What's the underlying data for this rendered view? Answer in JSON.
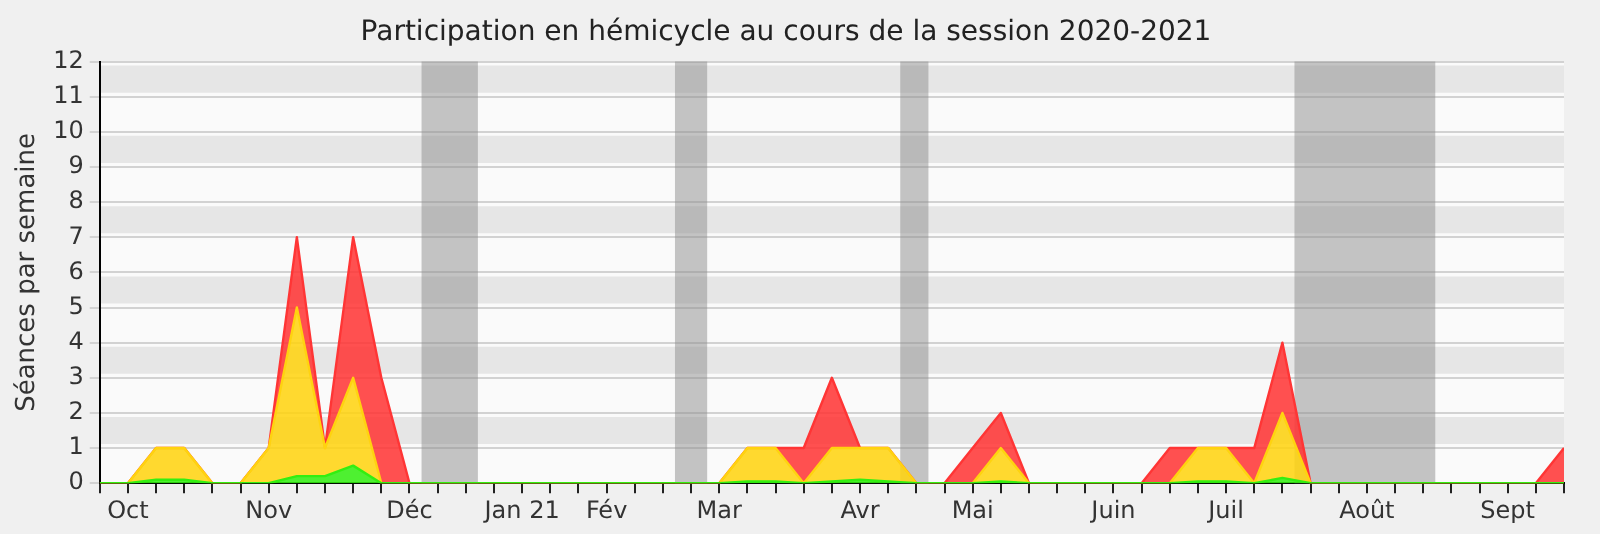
{
  "chart_data": {
    "type": "area",
    "title": "Participation en hémicycle au cours de la session 2020-2021",
    "ylabel": "Séances par semaine",
    "stacked": true,
    "legend": false,
    "grid": "y",
    "x": [
      "2020-09-28",
      "2020-10-05",
      "2020-10-12",
      "2020-10-19",
      "2020-10-26",
      "2020-11-02",
      "2020-11-09",
      "2020-11-16",
      "2020-11-23",
      "2020-11-30",
      "2020-12-07",
      "2020-12-14",
      "2020-12-21",
      "2020-12-28",
      "2021-01-04",
      "2021-01-11",
      "2021-01-18",
      "2021-01-25",
      "2021-02-01",
      "2021-02-08",
      "2021-02-15",
      "2021-02-22",
      "2021-03-01",
      "2021-03-08",
      "2021-03-15",
      "2021-03-22",
      "2021-03-29",
      "2021-04-05",
      "2021-04-12",
      "2021-04-19",
      "2021-04-26",
      "2021-05-03",
      "2021-05-10",
      "2021-05-17",
      "2021-05-24",
      "2021-05-31",
      "2021-06-07",
      "2021-06-14",
      "2021-06-21",
      "2021-06-28",
      "2021-07-05",
      "2021-07-12",
      "2021-07-19",
      "2021-07-26",
      "2021-08-02",
      "2021-08-09",
      "2021-08-16",
      "2021-08-23",
      "2021-08-30",
      "2021-09-06",
      "2021-09-13",
      "2021-09-20",
      "2021-09-27"
    ],
    "series": [
      {
        "color": "#33ee11",
        "values": [
          0,
          0,
          0.1,
          0.1,
          0,
          0,
          0,
          0.2,
          0.2,
          0.5,
          0,
          0,
          0,
          0,
          0,
          0,
          0,
          0,
          0,
          0,
          0,
          0,
          0,
          0.05,
          0.05,
          0,
          0.05,
          0.1,
          0.05,
          0,
          0,
          0,
          0.05,
          0,
          0,
          0,
          0,
          0,
          0,
          0.05,
          0.05,
          0,
          0.15,
          0,
          0,
          0,
          0,
          0,
          0,
          0,
          0,
          0,
          0
        ]
      },
      {
        "color": "#ffd30f",
        "values": [
          0,
          0,
          0.9,
          0.9,
          0,
          0,
          1,
          4.8,
          0.8,
          2.5,
          0,
          0,
          0,
          0,
          0,
          0,
          0,
          0,
          0,
          0,
          0,
          0,
          0,
          0.95,
          0.95,
          0,
          0.95,
          0.9,
          0.95,
          0,
          0,
          0,
          0.95,
          0,
          0,
          0,
          0,
          0,
          0,
          0.95,
          0.95,
          0,
          1.85,
          0,
          0,
          0,
          0,
          0,
          0,
          0,
          0,
          0,
          0
        ]
      },
      {
        "color": "#ff3535",
        "values": [
          0,
          0,
          0,
          0,
          0,
          0,
          0,
          2,
          0,
          4,
          3,
          0,
          0,
          0,
          0,
          0,
          0,
          0,
          0,
          0,
          0,
          0,
          0,
          0,
          0,
          1,
          2,
          0,
          0,
          0,
          0,
          1,
          1,
          0,
          0,
          0,
          0,
          0,
          1,
          0,
          0,
          1,
          2,
          0,
          0,
          0,
          0,
          0,
          0,
          0,
          0,
          0,
          1
        ]
      }
    ],
    "xlim": [
      "2020-09-28",
      "2021-09-27"
    ],
    "xticks": [
      {
        "value": "2020-09-28",
        "label": null
      },
      {
        "value": "2020-10-05",
        "label": "Oct"
      },
      {
        "value": "2020-10-12",
        "label": null
      },
      {
        "value": "2020-10-19",
        "label": null
      },
      {
        "value": "2020-10-26",
        "label": null
      },
      {
        "value": "2020-11-02",
        "label": null
      },
      {
        "value": "2020-11-09",
        "label": "Nov"
      },
      {
        "value": "2020-11-16",
        "label": null
      },
      {
        "value": "2020-11-23",
        "label": null
      },
      {
        "value": "2020-11-30",
        "label": null
      },
      {
        "value": "2020-12-07",
        "label": null
      },
      {
        "value": "2020-12-14",
        "label": "Déc"
      },
      {
        "value": "2020-12-21",
        "label": null
      },
      {
        "value": "2020-12-28",
        "label": null
      },
      {
        "value": "2021-01-04",
        "label": null
      },
      {
        "value": "2021-01-11",
        "label": "Jan 21"
      },
      {
        "value": "2021-01-18",
        "label": null
      },
      {
        "value": "2021-01-25",
        "label": null
      },
      {
        "value": "2021-02-01",
        "label": "Fév"
      },
      {
        "value": "2021-02-08",
        "label": null
      },
      {
        "value": "2021-02-15",
        "label": null
      },
      {
        "value": "2021-02-22",
        "label": null
      },
      {
        "value": "2021-03-01",
        "label": "Mar"
      },
      {
        "value": "2021-03-08",
        "label": null
      },
      {
        "value": "2021-03-15",
        "label": null
      },
      {
        "value": "2021-03-22",
        "label": null
      },
      {
        "value": "2021-03-29",
        "label": null
      },
      {
        "value": "2021-04-05",
        "label": "Avr"
      },
      {
        "value": "2021-04-12",
        "label": null
      },
      {
        "value": "2021-04-19",
        "label": null
      },
      {
        "value": "2021-04-26",
        "label": null
      },
      {
        "value": "2021-05-03",
        "label": "Mai"
      },
      {
        "value": "2021-05-10",
        "label": null
      },
      {
        "value": "2021-05-17",
        "label": null
      },
      {
        "value": "2021-05-24",
        "label": null
      },
      {
        "value": "2021-05-31",
        "label": null
      },
      {
        "value": "2021-06-07",
        "label": "Juin"
      },
      {
        "value": "2021-06-14",
        "label": null
      },
      {
        "value": "2021-06-21",
        "label": null
      },
      {
        "value": "2021-06-28",
        "label": null
      },
      {
        "value": "2021-07-05",
        "label": "Juil"
      },
      {
        "value": "2021-07-12",
        "label": null
      },
      {
        "value": "2021-07-19",
        "label": null
      },
      {
        "value": "2021-07-26",
        "label": null
      },
      {
        "value": "2021-08-02",
        "label": null
      },
      {
        "value": "2021-08-09",
        "label": "Août"
      },
      {
        "value": "2021-08-16",
        "label": null
      },
      {
        "value": "2021-08-23",
        "label": null
      },
      {
        "value": "2021-08-30",
        "label": null
      },
      {
        "value": "2021-09-06",
        "label": null
      },
      {
        "value": "2021-09-13",
        "label": "Sept"
      },
      {
        "value": "2021-09-20",
        "label": null
      },
      {
        "value": "2021-09-27",
        "label": null
      }
    ],
    "ylim": [
      0,
      12
    ],
    "yticks": [
      0,
      1,
      2,
      3,
      4,
      5,
      6,
      7,
      8,
      9,
      10,
      11,
      12
    ],
    "bands": [
      {
        "axis": "x",
        "from": "2020-12-17",
        "to": "2020-12-31",
        "color": "#8c8c8c"
      },
      {
        "axis": "x",
        "from": "2021-02-18",
        "to": "2021-02-26",
        "color": "#8c8c8c"
      },
      {
        "axis": "x",
        "from": "2021-04-15",
        "to": "2021-04-22",
        "color": "#8c8c8c"
      },
      {
        "axis": "x",
        "from": "2021-07-22",
        "to": "2021-08-26",
        "color": "#8c8c8c"
      }
    ]
  }
}
